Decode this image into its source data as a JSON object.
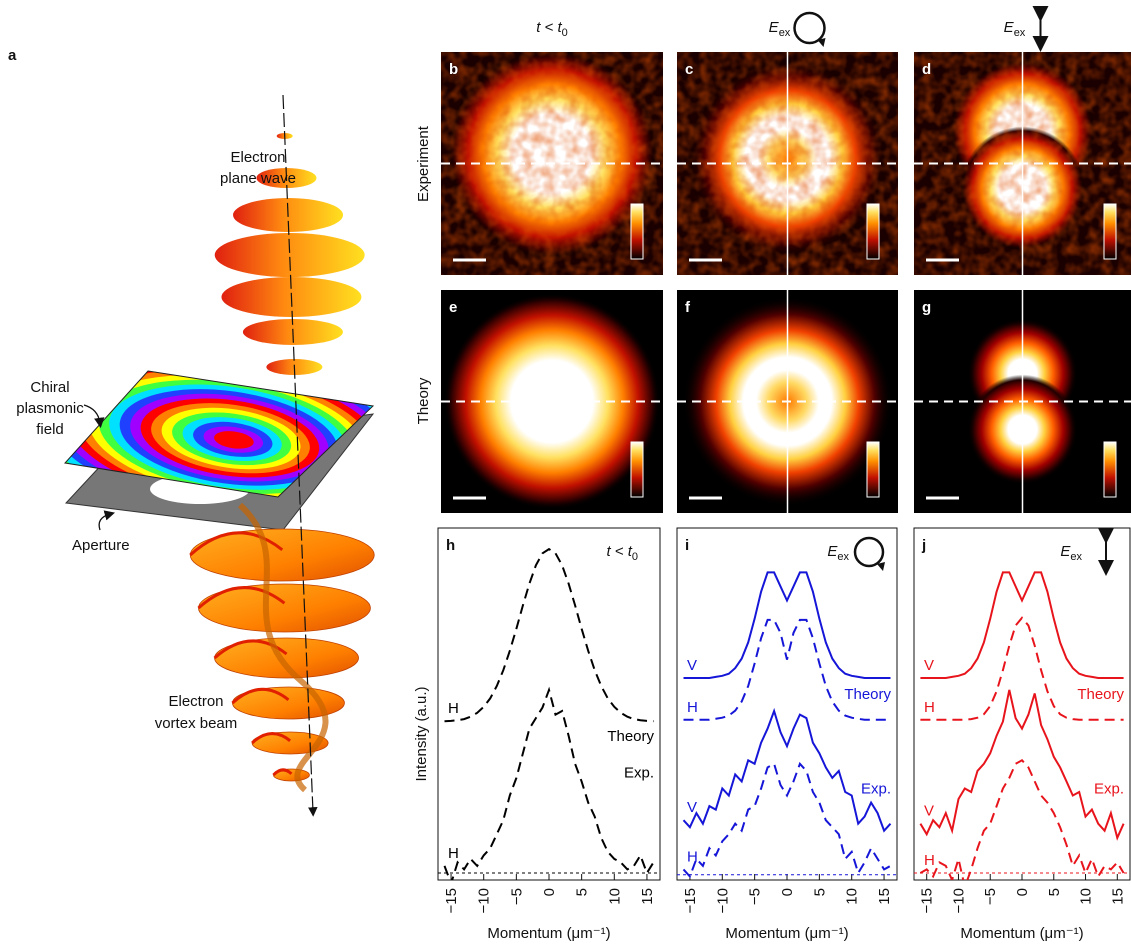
{
  "panel_a": {
    "label": "a",
    "plane_wave": [
      "Electron",
      "plane wave"
    ],
    "field": [
      "Chiral",
      "plasmonic",
      "field"
    ],
    "aperture": "Aperture",
    "vortex": [
      "Electron",
      "vortex beam"
    ]
  },
  "columns": [
    {
      "main": "t < t",
      "sub": "0"
    },
    {
      "main": "E",
      "sub": "ex"
    },
    {
      "main": "E",
      "sub": "ex"
    }
  ],
  "rows": [
    "Experiment",
    "Theory"
  ],
  "image_labels": [
    [
      "b",
      "c",
      "d"
    ],
    [
      "e",
      "f",
      "g"
    ]
  ],
  "chart_data": [
    {
      "type": "line",
      "panel": "h",
      "annotation": {
        "main": "t < t",
        "sub": "0"
      },
      "curve_labels": [
        "Theory",
        "Exp."
      ],
      "x_label": "Momentum (μm⁻¹)",
      "y_label": "Intensity (a.u.)",
      "x": [
        -16,
        -15,
        -14,
        -13,
        -12,
        -11,
        -10,
        -9,
        -8,
        -7,
        -6,
        -5,
        -4,
        -3,
        -2,
        -1,
        0,
        1,
        2,
        3,
        4,
        5,
        6,
        7,
        8,
        9,
        10,
        11,
        12,
        13,
        14,
        15,
        16
      ],
      "xlim": [
        -17,
        17
      ],
      "xticks": [
        {
          "value": -15,
          "label": "−15"
        },
        {
          "value": -10,
          "label": "−10"
        },
        {
          "value": -5,
          "label": "−5"
        },
        0,
        5,
        10,
        15
      ],
      "ylim": [
        0,
        10
      ],
      "baseline": 0.2,
      "series": [
        {
          "name": "H",
          "color": "#000000",
          "dash": true,
          "values": [
            4.51,
            4.52,
            4.54,
            4.57,
            4.64,
            4.75,
            4.92,
            5.16,
            5.51,
            5.96,
            6.51,
            7.14,
            7.8,
            8.42,
            8.94,
            9.28,
            9.4,
            9.28,
            8.94,
            8.42,
            7.8,
            7.14,
            6.51,
            5.96,
            5.51,
            5.16,
            4.92,
            4.75,
            4.64,
            4.57,
            4.54,
            4.52,
            4.51
          ]
        },
        {
          "name": "H",
          "color": "#000000",
          "dash": true,
          "values": [
            0.4,
            -0.1,
            0.5,
            0.3,
            0.6,
            0.4,
            0.7,
            0.9,
            1.3,
            1.7,
            2.4,
            2.9,
            3.6,
            4.3,
            4.6,
            4.9,
            5.4,
            4.7,
            4.8,
            4.1,
            3.3,
            2.8,
            2.2,
            1.8,
            1.2,
            0.8,
            0.6,
            0.5,
            0.3,
            0.4,
            0.7,
            0.2,
            0.5
          ]
        }
      ]
    },
    {
      "type": "line",
      "panel": "i",
      "annotation": {
        "main": "E",
        "sub": "ex"
      },
      "curve_labels": [
        "Theory",
        "Exp."
      ],
      "x_label": "Momentum (μm⁻¹)",
      "x": [
        -16,
        -15,
        -14,
        -13,
        -12,
        -11,
        -10,
        -9,
        -8,
        -7,
        -6,
        -5,
        -4,
        -3,
        -2,
        -1,
        0,
        1,
        2,
        3,
        4,
        5,
        6,
        7,
        8,
        9,
        10,
        11,
        12,
        13,
        14,
        15,
        16
      ],
      "xlim": [
        -17,
        17
      ],
      "xticks": [
        {
          "value": -15,
          "label": "−15"
        },
        {
          "value": -10,
          "label": "−10"
        },
        {
          "value": -5,
          "label": "−5"
        },
        0,
        5,
        10,
        15
      ],
      "ylim": [
        0,
        10
      ],
      "baseline": 0.15,
      "series": [
        {
          "name": "V",
          "color": "#1616d8",
          "dash": false,
          "values": [
            5.74,
            5.74,
            5.74,
            5.74,
            5.74,
            5.77,
            5.8,
            5.86,
            6.02,
            6.29,
            6.75,
            7.42,
            8.19,
            8.74,
            8.74,
            8.34,
            7.94,
            8.34,
            8.74,
            8.74,
            8.19,
            7.42,
            6.75,
            6.29,
            6.02,
            5.86,
            5.8,
            5.77,
            5.74,
            5.74,
            5.74,
            5.74,
            5.74
          ]
        },
        {
          "name": "H",
          "color": "#1616d8",
          "dash": true,
          "values": [
            4.55,
            4.55,
            4.55,
            4.55,
            4.55,
            4.58,
            4.61,
            4.67,
            4.81,
            5.07,
            5.51,
            6.15,
            6.87,
            7.39,
            7.39,
            7.02,
            6.26,
            7.02,
            7.39,
            7.39,
            6.87,
            6.15,
            5.51,
            5.07,
            4.81,
            4.67,
            4.61,
            4.58,
            4.55,
            4.55,
            4.55,
            4.55,
            4.55
          ]
        },
        {
          "name": "V",
          "color": "#1616d8",
          "dash": false,
          "values": [
            1.7,
            1.5,
            1.9,
            1.6,
            2.1,
            2.0,
            2.6,
            2.4,
            3.0,
            2.8,
            3.4,
            3.3,
            3.9,
            4.3,
            4.8,
            4.2,
            3.8,
            4.3,
            4.7,
            4.6,
            3.9,
            3.6,
            3.2,
            2.9,
            3.1,
            2.5,
            2.4,
            1.6,
            1.8,
            2.2,
            1.9,
            1.4,
            1.6
          ]
        },
        {
          "name": "H",
          "color": "#1616d8",
          "dash": true,
          "values": [
            0.3,
            0.1,
            0.6,
            0.4,
            0.9,
            0.7,
            1.1,
            1.3,
            1.6,
            1.4,
            2.0,
            2.1,
            2.6,
            3.2,
            3.3,
            2.7,
            2.4,
            2.8,
            3.3,
            3.1,
            2.5,
            2.2,
            1.7,
            1.5,
            1.3,
            0.6,
            0.8,
            0.2,
            0.5,
            0.9,
            0.6,
            0.3,
            0.4
          ]
        }
      ]
    },
    {
      "type": "line",
      "panel": "j",
      "annotation": {
        "main": "E",
        "sub": "ex"
      },
      "curve_labels": [
        "Theory",
        "Exp."
      ],
      "x_label": "Momentum (μm⁻¹)",
      "x": [
        -16,
        -15,
        -14,
        -13,
        -12,
        -11,
        -10,
        -9,
        -8,
        -7,
        -6,
        -5,
        -4,
        -3,
        -2,
        -1,
        0,
        1,
        2,
        3,
        4,
        5,
        6,
        7,
        8,
        9,
        10,
        11,
        12,
        13,
        14,
        15,
        16
      ],
      "xlim": [
        -17,
        17
      ],
      "xticks": [
        {
          "value": -15,
          "label": "−15"
        },
        {
          "value": -10,
          "label": "−10"
        },
        {
          "value": -5,
          "label": "−5"
        },
        0,
        5,
        10,
        15
      ],
      "ylim": [
        0,
        10
      ],
      "baseline": 0.2,
      "series": [
        {
          "name": "V",
          "color": "#e8141c",
          "dash": false,
          "values": [
            5.74,
            5.74,
            5.74,
            5.74,
            5.74,
            5.77,
            5.8,
            5.86,
            6.02,
            6.29,
            6.75,
            7.42,
            8.19,
            8.74,
            8.74,
            8.34,
            7.94,
            8.34,
            8.74,
            8.74,
            8.19,
            7.42,
            6.75,
            6.29,
            6.02,
            5.86,
            5.8,
            5.77,
            5.74,
            5.74,
            5.74,
            5.74,
            5.74
          ]
        },
        {
          "name": "H",
          "color": "#e8141c",
          "dash": true,
          "values": [
            4.55,
            4.55,
            4.55,
            4.55,
            4.55,
            4.55,
            4.55,
            4.55,
            4.57,
            4.61,
            4.71,
            4.94,
            5.36,
            5.96,
            6.66,
            7.23,
            7.45,
            7.23,
            6.66,
            5.96,
            5.36,
            4.94,
            4.71,
            4.61,
            4.57,
            4.55,
            4.55,
            4.55,
            4.55,
            4.55,
            4.55,
            4.55,
            4.55
          ]
        },
        {
          "name": "V",
          "color": "#e8141c",
          "dash": false,
          "values": [
            1.6,
            1.3,
            1.7,
            1.5,
            1.9,
            1.4,
            2.3,
            2.6,
            2.5,
            3.1,
            3.3,
            3.6,
            4.1,
            4.5,
            5.4,
            4.6,
            4.3,
            4.7,
            5.3,
            4.4,
            4.0,
            3.5,
            3.2,
            2.8,
            2.4,
            2.5,
            1.8,
            2.0,
            1.6,
            1.4,
            1.9,
            1.2,
            1.6
          ]
        },
        {
          "name": "H",
          "color": "#e8141c",
          "dash": true,
          "values": [
            0.2,
            0.3,
            0.1,
            0.5,
            0.4,
            0.0,
            0.6,
            -0.2,
            0.3,
            0.9,
            1.4,
            1.6,
            2.1,
            2.6,
            2.9,
            3.3,
            3.4,
            3.2,
            2.8,
            2.4,
            2.2,
            1.9,
            1.5,
            1.0,
            0.4,
            0.7,
            0.2,
            0.6,
            0.1,
            0.4,
            0.3,
            0.5,
            0.2
          ]
        }
      ]
    }
  ]
}
